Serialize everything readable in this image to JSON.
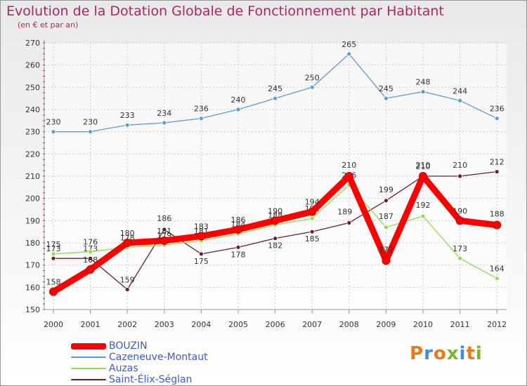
{
  "title": "Evolution de la Dotation Globale de Fonctionnement par Habitant",
  "subtitle": "(en € et par an)",
  "logo_text": "Proxiti",
  "chart_data": {
    "type": "line",
    "title": "Evolution de la Dotation Globale de Fonctionnement par Habitant",
    "subtitle": "(en € et par an)",
    "xlabel": "",
    "ylabel": "",
    "ylim": [
      150,
      270
    ],
    "yticks": [
      150,
      160,
      170,
      180,
      190,
      200,
      210,
      220,
      230,
      240,
      250,
      260,
      270
    ],
    "grid": true,
    "legend_position": "bottom",
    "categories": [
      "2000",
      "2001",
      "2002",
      "2003",
      "2004",
      "2005",
      "2006",
      "2007",
      "2008",
      "2009",
      "2010",
      "2011",
      "2012"
    ],
    "series": [
      {
        "name": "BOUZIN",
        "color": "#ff0000",
        "values": [
          158,
          168,
          180,
          181,
          183,
          186,
          190,
          194,
          210,
          172,
          210,
          190,
          188
        ]
      },
      {
        "name": "Cazeneuve-Montaut",
        "color": "#5b9bd5",
        "values": [
          230,
          230,
          233,
          234,
          236,
          240,
          245,
          250,
          265,
          245,
          248,
          244,
          236
        ]
      },
      {
        "name": "Auzas",
        "color": "#8fdd4f",
        "values": [
          175,
          176,
          178,
          179,
          181,
          184,
          188,
          191,
          206,
          187,
          192,
          173,
          164
        ]
      },
      {
        "name": "Saint-Élix-Séglan",
        "color": "#6b2020",
        "values": [
          173,
          173,
          159,
          186,
          175,
          178,
          182,
          185,
          189,
          199,
          210,
          210,
          212
        ]
      }
    ]
  }
}
